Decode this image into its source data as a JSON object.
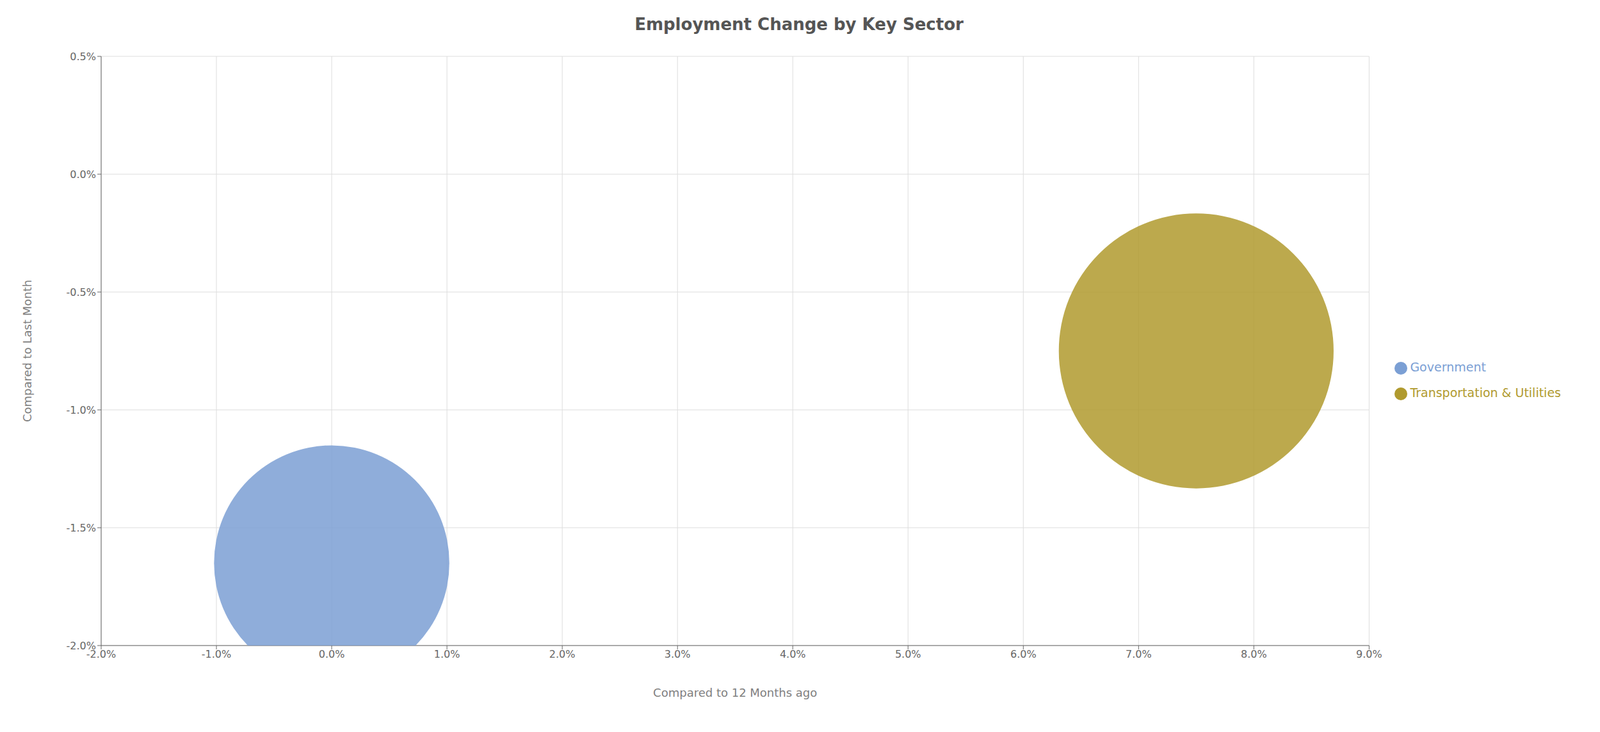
{
  "chart_data": {
    "type": "scatter",
    "title": "Employment Change by Key Sector",
    "x_label": "Compared to 12 Months ago",
    "y_label": "Compared to Last Month",
    "series": [
      {
        "name": "Government",
        "color": "#7b9fd4",
        "x": [
          0.0
        ],
        "values": [
          -1.65
        ],
        "sizes": [
          55000
        ]
      },
      {
        "name": "Transportation & Utilities",
        "color": "#b09a2e",
        "x": [
          7.5
        ],
        "values": [
          -0.75
        ],
        "sizes": [
          75000
        ]
      }
    ],
    "xlim": [
      -2.0,
      9.0
    ],
    "ylim": [
      -2.0,
      0.5
    ],
    "xticks": [
      {
        "value": -2.0,
        "label": "-2.0%"
      },
      {
        "value": -1.0,
        "label": "-1.0%"
      },
      {
        "value": 0.0,
        "label": "0.0%"
      },
      {
        "value": 1.0,
        "label": "1.0%"
      },
      {
        "value": 2.0,
        "label": "2.0%"
      },
      {
        "value": 3.0,
        "label": "3.0%"
      },
      {
        "value": 4.0,
        "label": "4.0%"
      },
      {
        "value": 5.0,
        "label": "5.0%"
      },
      {
        "value": 6.0,
        "label": "6.0%"
      },
      {
        "value": 7.0,
        "label": "7.0%"
      },
      {
        "value": 8.0,
        "label": "8.0%"
      },
      {
        "value": 9.0,
        "label": "9.0%"
      }
    ],
    "yticks": [
      {
        "value": -2.0,
        "label": "-2.0%"
      },
      {
        "value": -1.5,
        "label": "-1.5%"
      },
      {
        "value": -1.0,
        "label": "-1.0%"
      },
      {
        "value": -0.5,
        "label": "-0.5%"
      },
      {
        "value": 0.0,
        "label": "0.0%"
      },
      {
        "value": 0.5,
        "label": "0.5%"
      }
    ],
    "grid": true,
    "legend": "right"
  }
}
